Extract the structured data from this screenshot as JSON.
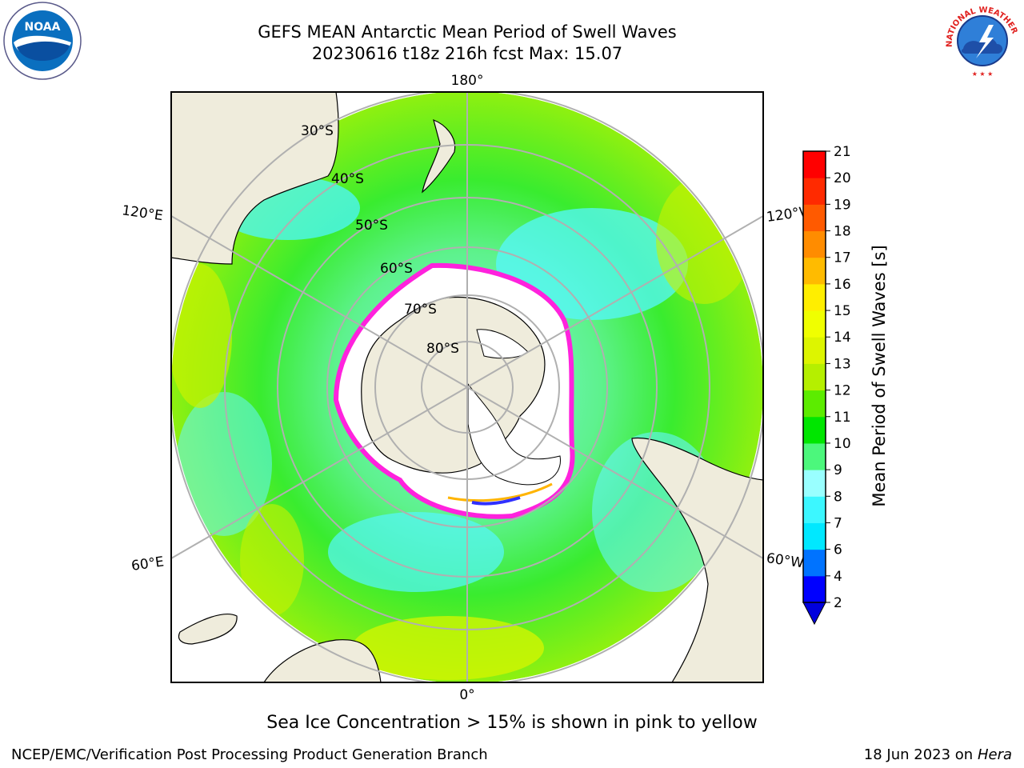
{
  "title": {
    "line1": "GEFS MEAN Antarctic Mean Period of Swell Waves",
    "line2": "20230616 t18z 216h fcst   Max: 15.07"
  },
  "map": {
    "projection": "south-polar-stereographic",
    "lat_labels": [
      "30°S",
      "40°S",
      "50°S",
      "60°S",
      "70°S",
      "80°S"
    ],
    "lon_labels": {
      "top": "180°",
      "bottom": "0°",
      "upper_left": "120°E",
      "lower_left": "60°E",
      "upper_right": "120°W",
      "lower_right": "60°W"
    },
    "colors": {
      "land": "#efecdc",
      "ice": "#ffffff",
      "grid": "#b0b0b0",
      "coast": "#000000"
    }
  },
  "colorbar": {
    "label": "Mean Period of Swell Waves [s]",
    "ticks": [
      "2",
      "4",
      "6",
      "7",
      "8",
      "9",
      "10",
      "11",
      "12",
      "13",
      "14",
      "15",
      "16",
      "17",
      "18",
      "19",
      "20",
      "21"
    ],
    "colors": [
      "#0000ff",
      "#0073ff",
      "#00e8ff",
      "#3cf7ff",
      "#99ffff",
      "#4cf77c",
      "#00e600",
      "#5cec00",
      "#b5ef00",
      "#ddf500",
      "#f0ff00",
      "#ffee00",
      "#ffbb00",
      "#ff8c00",
      "#ff5a00",
      "#ff2a00",
      "#ff0000"
    ],
    "extend_color": "#0000dd"
  },
  "footer": {
    "caption": "Sea Ice Concentration > 15% is shown in pink to yellow",
    "credit": "NCEP/EMC/Verification Post Processing Product Generation Branch",
    "date": "18 Jun 2023 on",
    "machine": "Hera"
  },
  "logos": {
    "left": "NOAA",
    "right": "NATIONAL WEATHER SERVICE"
  }
}
